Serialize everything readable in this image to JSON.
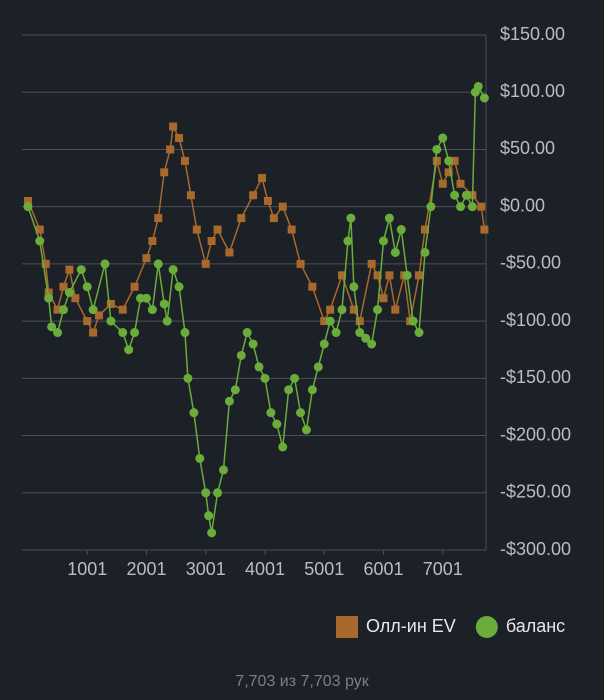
{
  "chart_data": {
    "type": "line",
    "xlim": [
      -100,
      7730
    ],
    "xticks": [
      1001,
      2001,
      3001,
      4001,
      5001,
      6001,
      7001
    ],
    "ylim": [
      -300,
      150
    ],
    "yticks": [
      {
        "value": 150,
        "label": "$150.00"
      },
      {
        "value": 100,
        "label": "$100.00"
      },
      {
        "value": 50,
        "label": "$50.00"
      },
      {
        "value": 0,
        "label": "$0.00"
      },
      {
        "value": -50,
        "label": "-$50.00"
      },
      {
        "value": -100,
        "label": "-$100.00"
      },
      {
        "value": -150,
        "label": "-$150.00"
      },
      {
        "value": -200,
        "label": "-$200.00"
      },
      {
        "value": -250,
        "label": "-$250.00"
      },
      {
        "value": -300,
        "label": "-$300.00"
      }
    ],
    "grid": true,
    "legend": "bottom-right",
    "series": [
      {
        "name": "Олл-ин EV",
        "color": "#a8692c",
        "marker": "square",
        "x": [
          1,
          200,
          300,
          350,
          500,
          600,
          700,
          800,
          1000,
          1100,
          1200,
          1400,
          1600,
          1800,
          2000,
          2100,
          2200,
          2300,
          2400,
          2450,
          2550,
          2650,
          2750,
          2850,
          3000,
          3100,
          3200,
          3400,
          3600,
          3800,
          3950,
          4050,
          4150,
          4300,
          4450,
          4600,
          4800,
          5000,
          5100,
          5300,
          5500,
          5600,
          5800,
          5900,
          6000,
          6100,
          6200,
          6350,
          6450,
          6600,
          6700,
          6900,
          7000,
          7100,
          7200,
          7300,
          7500,
          7650,
          7703
        ],
        "values": [
          5,
          -20,
          -50,
          -75,
          -90,
          -70,
          -55,
          -80,
          -100,
          -110,
          -95,
          -85,
          -90,
          -70,
          -45,
          -30,
          -10,
          30,
          50,
          70,
          60,
          40,
          10,
          -20,
          -50,
          -30,
          -20,
          -40,
          -10,
          10,
          25,
          5,
          -10,
          0,
          -20,
          -50,
          -70,
          -100,
          -90,
          -60,
          -90,
          -100,
          -50,
          -60,
          -80,
          -60,
          -90,
          -60,
          -100,
          -60,
          -20,
          40,
          20,
          30,
          40,
          20,
          10,
          0,
          -20
        ]
      },
      {
        "name": "баланс",
        "color": "#6aad3a",
        "marker": "circle",
        "x": [
          1,
          200,
          350,
          400,
          500,
          600,
          700,
          900,
          1000,
          1100,
          1300,
          1400,
          1600,
          1700,
          1800,
          1900,
          2000,
          2100,
          2200,
          2300,
          2350,
          2450,
          2550,
          2650,
          2700,
          2800,
          2900,
          3000,
          3050,
          3100,
          3200,
          3300,
          3400,
          3500,
          3600,
          3700,
          3800,
          3900,
          4000,
          4100,
          4200,
          4300,
          4400,
          4500,
          4600,
          4700,
          4800,
          4900,
          5000,
          5100,
          5200,
          5300,
          5400,
          5450,
          5500,
          5600,
          5700,
          5800,
          5900,
          6000,
          6100,
          6200,
          6300,
          6400,
          6500,
          6600,
          6700,
          6800,
          6900,
          7000,
          7100,
          7200,
          7300,
          7400,
          7500,
          7550,
          7600,
          7703
        ],
        "values": [
          0,
          -30,
          -80,
          -105,
          -110,
          -90,
          -75,
          -55,
          -70,
          -90,
          -50,
          -100,
          -110,
          -125,
          -110,
          -80,
          -80,
          -90,
          -50,
          -85,
          -100,
          -55,
          -70,
          -110,
          -150,
          -180,
          -220,
          -250,
          -270,
          -285,
          -250,
          -230,
          -170,
          -160,
          -130,
          -110,
          -120,
          -140,
          -150,
          -180,
          -190,
          -210,
          -160,
          -150,
          -180,
          -195,
          -160,
          -140,
          -120,
          -100,
          -110,
          -90,
          -30,
          -10,
          -70,
          -110,
          -115,
          -120,
          -90,
          -30,
          -10,
          -40,
          -20,
          -60,
          -100,
          -110,
          -40,
          0,
          50,
          60,
          40,
          10,
          0,
          10,
          0,
          100,
          105,
          95
        ]
      }
    ],
    "footer": "7,703 из 7,703 рук"
  }
}
